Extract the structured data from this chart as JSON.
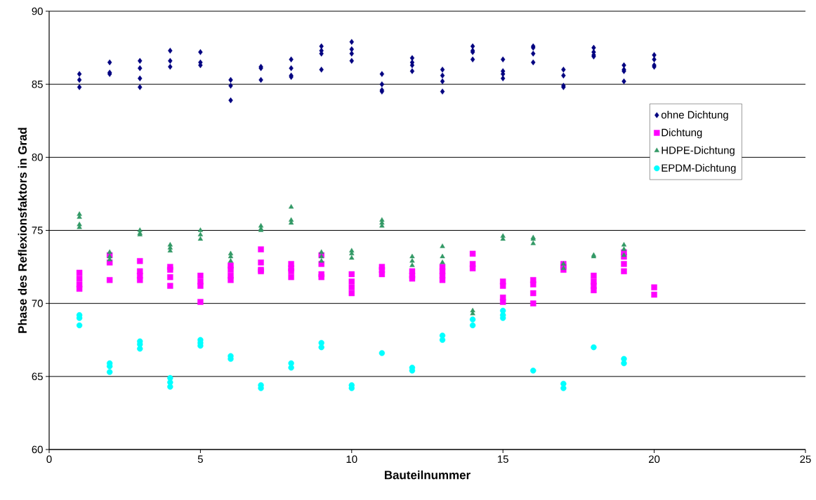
{
  "chart_data": {
    "type": "scatter",
    "xlabel": "Bauteilnummer",
    "ylabel": "Phase des Reflexionsfaktors in Grad",
    "xlim": [
      0,
      25
    ],
    "xticks": [
      0,
      5,
      10,
      15,
      20,
      25
    ],
    "ylim": [
      60,
      90
    ],
    "yticks": [
      60,
      65,
      70,
      75,
      80,
      85,
      90
    ],
    "grid": "y",
    "legend": "right",
    "series": [
      {
        "name": "ohne Dichtung",
        "color": "#000080",
        "marker": "diamond",
        "x": [
          1,
          1,
          1,
          2,
          2,
          2,
          3,
          3,
          3,
          3,
          4,
          4,
          4,
          5,
          5,
          5,
          6,
          6,
          6,
          7,
          7,
          7,
          8,
          8,
          8,
          8,
          9,
          9,
          9,
          9,
          10,
          10,
          10,
          10,
          11,
          11,
          11,
          11,
          12,
          12,
          12,
          12,
          13,
          13,
          13,
          13,
          14,
          14,
          14,
          14,
          15,
          15,
          15,
          15,
          16,
          16,
          16,
          16,
          17,
          17,
          17,
          17,
          18,
          18,
          18,
          18,
          19,
          19,
          19,
          19,
          20,
          20,
          20,
          20
        ],
        "values": [
          85.7,
          85.3,
          84.8,
          86.5,
          85.8,
          85.7,
          86.6,
          86.1,
          85.4,
          84.8,
          87.3,
          86.6,
          86.2,
          87.2,
          86.5,
          86.3,
          85.3,
          84.9,
          83.9,
          86.2,
          86.1,
          85.3,
          86.7,
          86.1,
          85.6,
          85.5,
          87.6,
          87.3,
          87.1,
          86.0,
          87.9,
          87.4,
          87.1,
          86.6,
          85.7,
          85.0,
          84.6,
          84.5,
          86.8,
          86.5,
          86.3,
          85.9,
          86.0,
          85.6,
          85.2,
          84.5,
          87.6,
          87.3,
          87.2,
          86.7,
          86.7,
          85.9,
          85.7,
          85.4,
          87.6,
          87.5,
          87.1,
          86.5,
          86.0,
          85.6,
          84.9,
          84.8,
          87.5,
          87.2,
          87.0,
          86.9,
          86.3,
          86.0,
          85.9,
          85.2,
          87.0,
          86.7,
          86.3,
          86.2
        ]
      },
      {
        "name": "Dichtung",
        "color": "#ff00ff",
        "marker": "square",
        "x": [
          1,
          1,
          1,
          1,
          2,
          2,
          2,
          3,
          3,
          3,
          3,
          4,
          4,
          4,
          4,
          5,
          5,
          5,
          5,
          6,
          6,
          6,
          6,
          7,
          7,
          7,
          7,
          8,
          8,
          8,
          8,
          9,
          9,
          9,
          9,
          10,
          10,
          10,
          10,
          11,
          11,
          11,
          12,
          12,
          12,
          13,
          13,
          13,
          13,
          14,
          14,
          14,
          15,
          15,
          15,
          15,
          16,
          16,
          16,
          16,
          17,
          17,
          17,
          18,
          18,
          18,
          18,
          19,
          19,
          19,
          19,
          20,
          20
        ],
        "values": [
          72.1,
          71.7,
          71.3,
          71.0,
          73.3,
          72.8,
          71.6,
          72.9,
          72.2,
          71.9,
          71.6,
          72.5,
          72.3,
          71.8,
          71.2,
          71.9,
          71.5,
          71.2,
          70.1,
          72.6,
          72.3,
          71.9,
          71.6,
          73.7,
          72.8,
          72.3,
          72.2,
          72.7,
          72.4,
          72.2,
          71.8,
          73.3,
          72.7,
          72.0,
          71.8,
          72.0,
          71.5,
          71.1,
          70.7,
          72.5,
          72.3,
          72.0,
          72.2,
          71.9,
          71.7,
          72.5,
          72.2,
          71.9,
          71.6,
          73.4,
          72.7,
          72.4,
          71.5,
          71.2,
          70.4,
          70.1,
          71.6,
          71.3,
          70.7,
          70.0,
          72.7,
          72.5,
          72.3,
          71.9,
          71.5,
          71.2,
          70.9,
          73.5,
          73.2,
          72.7,
          72.2,
          71.1,
          70.6
        ]
      },
      {
        "name": "HDPE-Dichtung",
        "color": "#339966",
        "marker": "triangle",
        "x": [
          1,
          1,
          1,
          1,
          2,
          2,
          2,
          3,
          3,
          3,
          4,
          4,
          4,
          5,
          5,
          5,
          6,
          6,
          6,
          7,
          7,
          7,
          8,
          8,
          8,
          9,
          9,
          9,
          10,
          10,
          10,
          11,
          11,
          11,
          12,
          12,
          12,
          13,
          13,
          13,
          14,
          14,
          15,
          15,
          16,
          16,
          16,
          17,
          17,
          18,
          18,
          19,
          19,
          19
        ],
        "values": [
          76.1,
          75.9,
          75.4,
          75.2,
          73.5,
          73.2,
          73.0,
          75.0,
          74.8,
          74.7,
          74.0,
          73.8,
          73.6,
          75.0,
          74.7,
          74.4,
          73.4,
          73.2,
          72.9,
          75.3,
          75.1,
          75.0,
          76.6,
          75.7,
          75.5,
          73.5,
          73.2,
          72.9,
          73.6,
          73.4,
          73.1,
          75.7,
          75.5,
          75.3,
          73.2,
          72.9,
          72.6,
          73.9,
          73.2,
          72.8,
          69.5,
          69.3,
          74.6,
          74.4,
          74.5,
          74.4,
          74.1,
          72.7,
          72.4,
          73.3,
          73.2,
          74.0,
          73.7,
          73.3
        ]
      },
      {
        "name": "EPDM-Dichtung",
        "color": "#00ffff",
        "marker": "circle",
        "x": [
          1,
          1,
          1,
          2,
          2,
          2,
          3,
          3,
          3,
          4,
          4,
          4,
          5,
          5,
          5,
          6,
          6,
          7,
          7,
          8,
          8,
          9,
          9,
          10,
          10,
          11,
          12,
          12,
          13,
          13,
          14,
          14,
          15,
          15,
          15,
          16,
          17,
          17,
          18,
          19,
          19
        ],
        "values": [
          69.2,
          69.0,
          68.5,
          65.9,
          65.7,
          65.3,
          67.4,
          67.2,
          66.9,
          64.9,
          64.6,
          64.3,
          67.5,
          67.3,
          67.1,
          66.4,
          66.2,
          64.4,
          64.2,
          65.9,
          65.6,
          67.3,
          67.0,
          64.4,
          64.2,
          66.6,
          65.6,
          65.4,
          67.8,
          67.5,
          68.9,
          68.5,
          69.5,
          69.2,
          69.0,
          65.4,
          64.5,
          64.2,
          67.0,
          66.2,
          65.9
        ]
      }
    ]
  }
}
